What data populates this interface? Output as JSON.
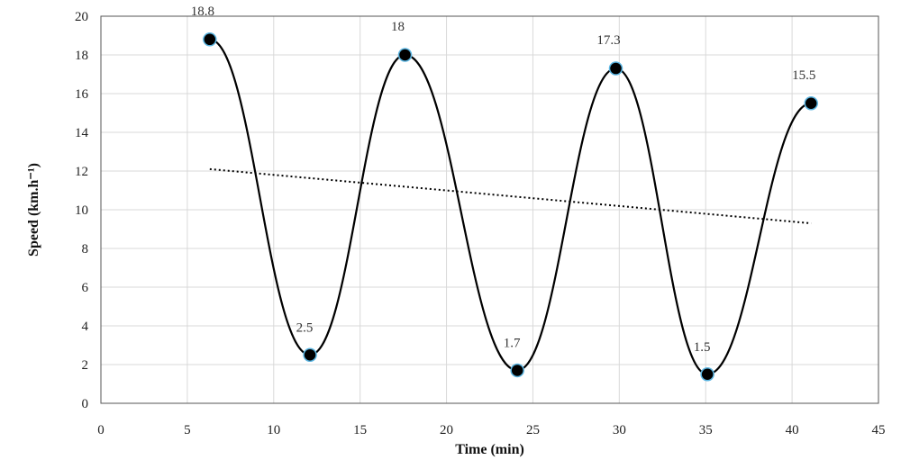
{
  "chart_data": {
    "type": "line",
    "title": "",
    "xlabel": "Time (min)",
    "ylabel": "Speed (km.h⁻¹)",
    "xlim": [
      0,
      45
    ],
    "ylim": [
      0,
      20
    ],
    "x_ticks": [
      "0",
      "5",
      "10",
      "15",
      "20",
      "25",
      "30",
      "35",
      "40",
      "45"
    ],
    "y_ticks": [
      "0",
      "2",
      "4",
      "6",
      "8",
      "10",
      "12",
      "14",
      "16",
      "18",
      "20"
    ],
    "grid": true,
    "legend": "none",
    "series": [
      {
        "x": [
          6.3,
          12.1,
          17.6,
          24.1,
          29.8,
          35.1,
          41.1
        ],
        "y": [
          18.8,
          2.5,
          18.0,
          1.7,
          17.3,
          1.5,
          15.5
        ],
        "data_labels": [
          "18.8",
          "2.5",
          "18",
          "1.7",
          "17.3",
          "1.5",
          "15.5"
        ],
        "line_color": "#000000",
        "marker_color": "#000000",
        "marker_edge_color": "#5ab4e0",
        "smooth": true
      }
    ],
    "trendline": {
      "style": "dotted",
      "color": "#000000",
      "x": [
        6.3,
        41.1
      ],
      "y": [
        12.1,
        9.3
      ]
    }
  }
}
